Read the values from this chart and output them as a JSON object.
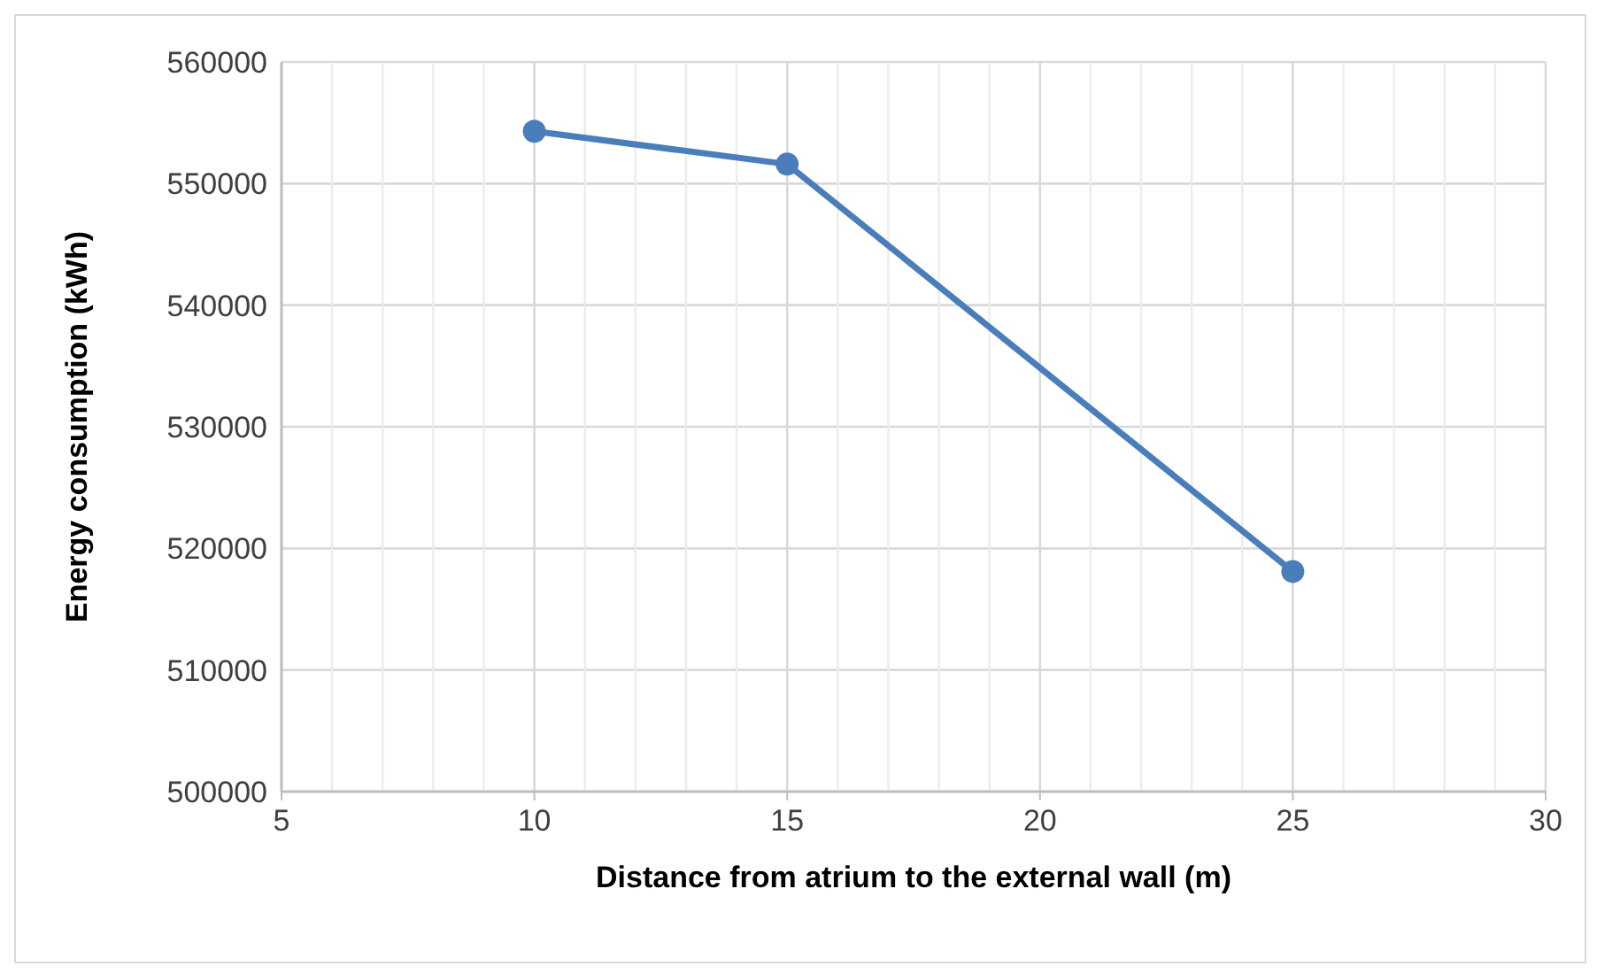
{
  "chart_data": {
    "type": "line",
    "xlabel": "Distance from atrium to the external wall (m)",
    "ylabel": "Energy consumption (kWh)",
    "x": [
      10,
      15,
      25
    ],
    "series": [
      {
        "color": "#4a7ebb",
        "values": [
          554300,
          551600,
          518100
        ]
      }
    ],
    "xlim": [
      5,
      30
    ],
    "xticks": [
      5,
      {
        "value": 6,
        "label": null
      },
      {
        "value": 7,
        "label": null
      },
      {
        "value": 8,
        "label": null
      },
      {
        "value": 9,
        "label": null
      },
      10,
      {
        "value": 11,
        "label": null
      },
      {
        "value": 12,
        "label": null
      },
      {
        "value": 13,
        "label": null
      },
      {
        "value": 14,
        "label": null
      },
      15,
      {
        "value": 16,
        "label": null
      },
      {
        "value": 17,
        "label": null
      },
      {
        "value": 18,
        "label": null
      },
      {
        "value": 19,
        "label": null
      },
      20,
      {
        "value": 21,
        "label": null
      },
      {
        "value": 22,
        "label": null
      },
      {
        "value": 23,
        "label": null
      },
      {
        "value": 24,
        "label": null
      },
      25,
      {
        "value": 26,
        "label": null
      },
      {
        "value": 27,
        "label": null
      },
      {
        "value": 28,
        "label": null
      },
      {
        "value": 29,
        "label": null
      },
      30
    ],
    "ylim": [
      500000,
      560000
    ],
    "yticks": [
      500000,
      510000,
      520000,
      530000,
      540000,
      550000,
      560000
    ],
    "grid": true,
    "marker": "circle",
    "line_style": "solid",
    "legend": false
  }
}
